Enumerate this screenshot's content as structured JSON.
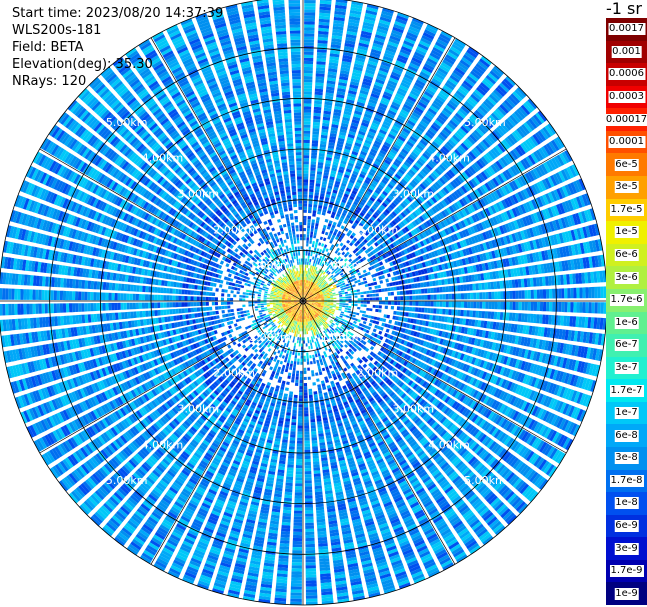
{
  "header": {
    "start_time": "Start time: 2023/08/20 14:37:39",
    "instrument": "WLS200s-181",
    "field": "Field: BETA",
    "elevation": "Elevation(deg): 35.30",
    "nrays": "NRays: 120"
  },
  "colorbar": {
    "unit_label": "-1 sr",
    "bins": [
      {
        "label": "0.0017",
        "color": "#7f0000"
      },
      {
        "label": "0.001",
        "color": "#a00000"
      },
      {
        "label": "0.0006",
        "color": "#c80000"
      },
      {
        "label": "0.0003",
        "color": "#f00000"
      },
      {
        "label": "0.00017",
        "color": "#ff2000"
      },
      {
        "label": "0.0001",
        "color": "#ff5000"
      },
      {
        "label": "6e-5",
        "color": "#ff7a00"
      },
      {
        "label": "3e-5",
        "color": "#ffa000"
      },
      {
        "label": "1.7e-5",
        "color": "#ffcc00"
      },
      {
        "label": "1e-5",
        "color": "#f0f000"
      },
      {
        "label": "6e-6",
        "color": "#d0f020"
      },
      {
        "label": "3e-6",
        "color": "#b0f040"
      },
      {
        "label": "1.7e-6",
        "color": "#88f070"
      },
      {
        "label": "1e-6",
        "color": "#60f090"
      },
      {
        "label": "6e-7",
        "color": "#40f0b0"
      },
      {
        "label": "3e-7",
        "color": "#20f0d0"
      },
      {
        "label": "1.7e-7",
        "color": "#00e8f0"
      },
      {
        "label": "1e-7",
        "color": "#00c8f8"
      },
      {
        "label": "6e-8",
        "color": "#00a8f8"
      },
      {
        "label": "3e-8",
        "color": "#0090f0"
      },
      {
        "label": "1.7e-8",
        "color": "#0070f0"
      },
      {
        "label": "1e-8",
        "color": "#0050f0"
      },
      {
        "label": "6e-9",
        "color": "#0030e0"
      },
      {
        "label": "3e-9",
        "color": "#0010d0"
      },
      {
        "label": "1.7e-9",
        "color": "#0000b0"
      },
      {
        "label": "1e-9",
        "color": "#000080"
      }
    ]
  },
  "chart_data": {
    "type": "heatmap",
    "projection": "polar-ppi",
    "field": "BETA",
    "nrays": 120,
    "max_range_km": 6,
    "range_rings_km": [
      1,
      2,
      3,
      4,
      5,
      6
    ],
    "ring_labels": [
      {
        "label": "1.00km",
        "km": 1
      },
      {
        "label": "2.00km",
        "km": 2
      },
      {
        "label": "3.00km",
        "km": 3
      },
      {
        "label": "4.00km",
        "km": 4
      },
      {
        "label": "5.00km",
        "km": 5
      }
    ],
    "grid": true,
    "colorscale": "log",
    "near_range_peak": "0.0001",
    "background_level": "1e-7"
  }
}
